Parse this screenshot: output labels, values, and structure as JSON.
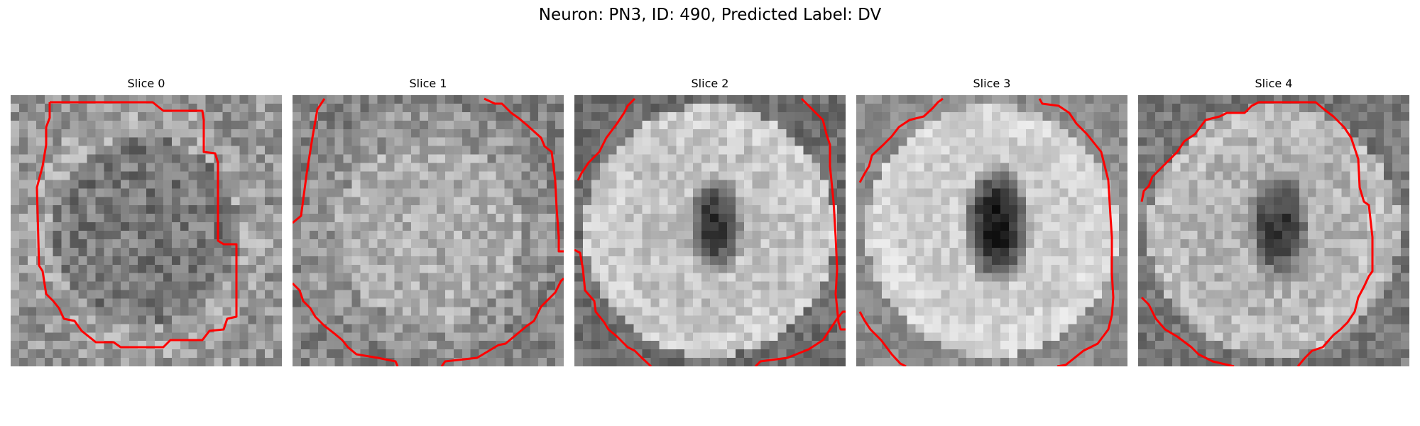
{
  "title": "Neuron: PN3, ID: 490, Predicted Label: DV",
  "panels": [
    {
      "title": "Slice 0"
    },
    {
      "title": "Slice 1"
    },
    {
      "title": "Slice 2"
    },
    {
      "title": "Slice 3"
    },
    {
      "title": "Slice 4"
    }
  ],
  "colors": {
    "contour": "#ff0000",
    "background": "#ffffff"
  }
}
